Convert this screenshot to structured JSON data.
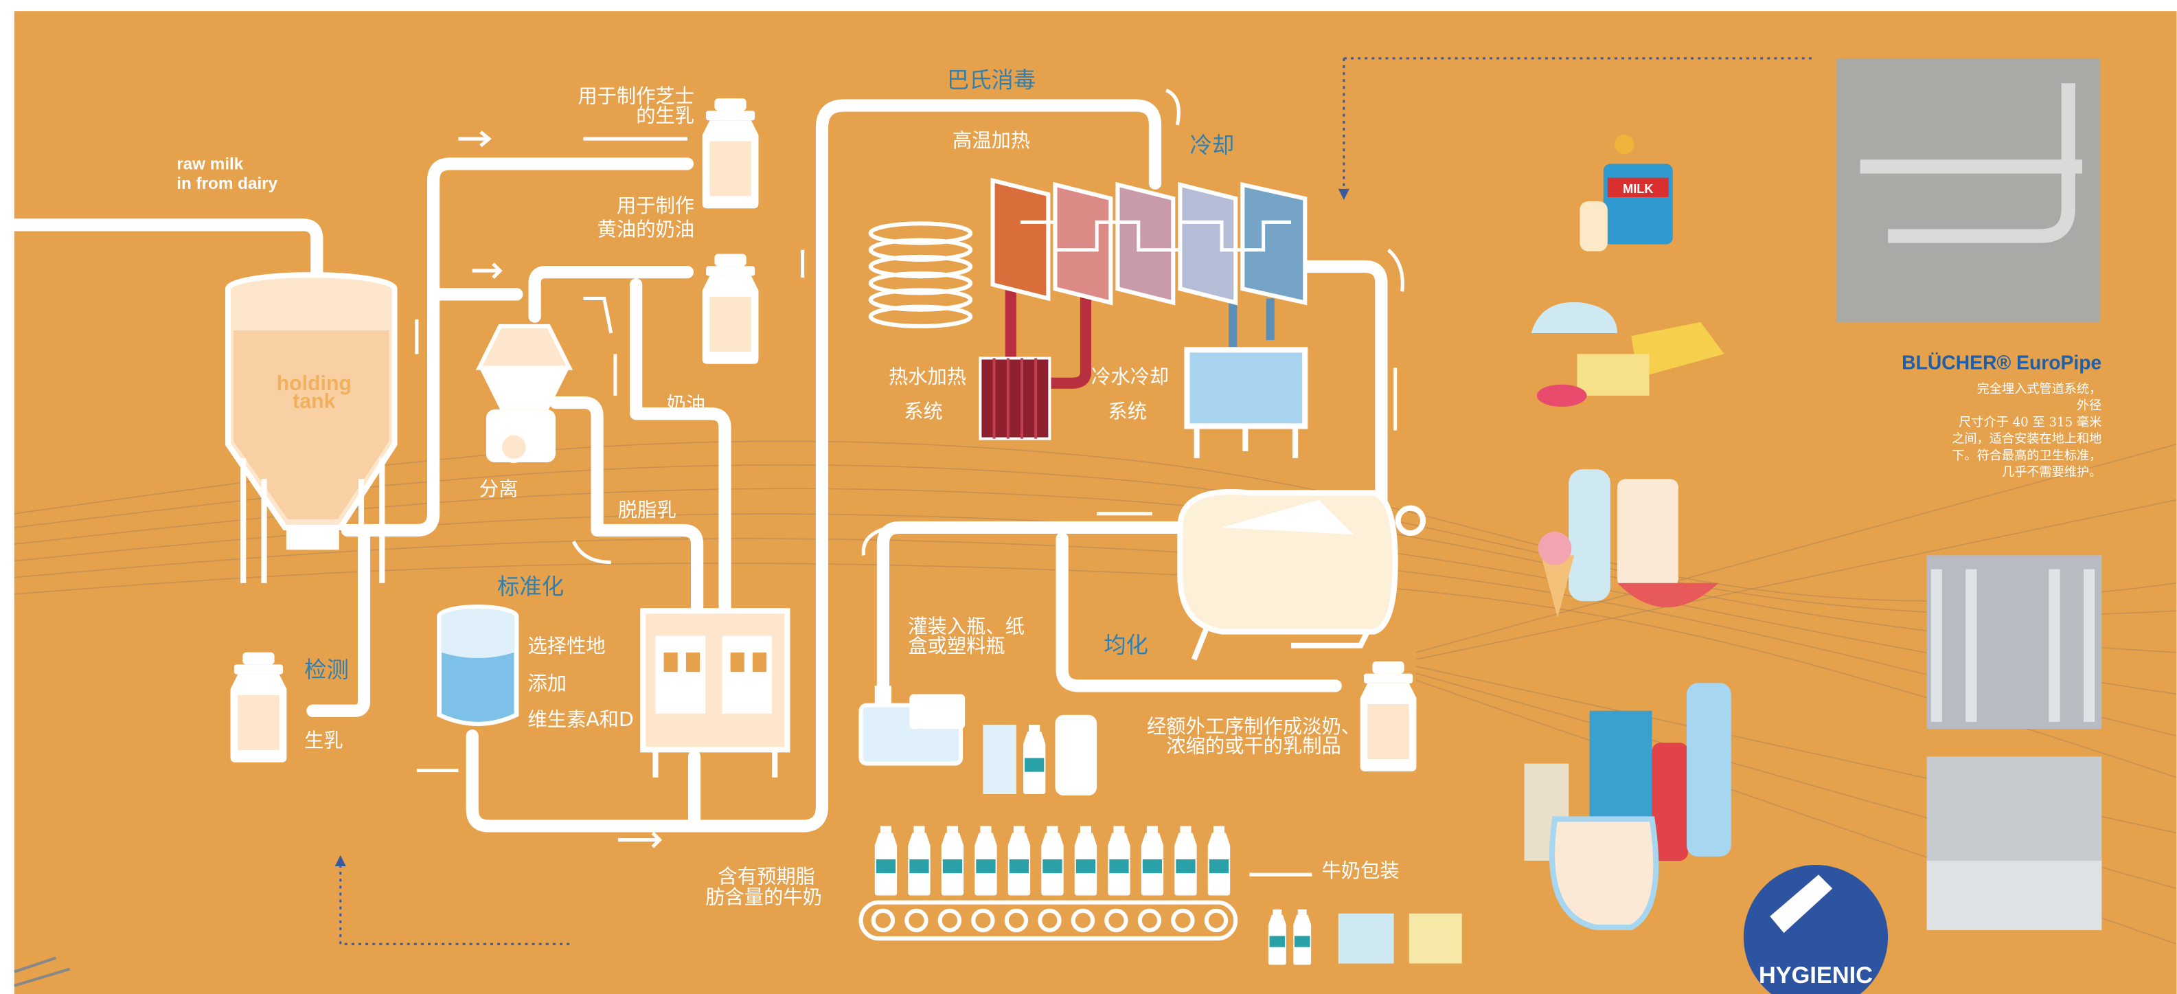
{
  "labels": {
    "raw_milk": [
      "raw milk",
      "in from dairy"
    ],
    "holding_tank": [
      "holding",
      "tank"
    ],
    "testing": "检测",
    "raw_milk_cn": "生乳",
    "cheese_milk": [
      "用于制作芝士",
      "的生乳"
    ],
    "butter_cream": [
      "用于制作",
      "黄油的奶油"
    ],
    "separation": "分离",
    "cream": "奶油",
    "skim_milk": "脱脂乳",
    "standardization": "标准化",
    "vitamins": [
      "选择性地",
      "添加",
      "维生素A和D"
    ],
    "target_fat_milk": [
      "含有预期脂",
      "肪含量的牛奶"
    ],
    "pasteurization": "巴氏消毒",
    "heating": "高温加热",
    "cooling": "冷却",
    "hot_water": [
      "热水加热",
      "系统"
    ],
    "cold_water": [
      "冷水冷却",
      "系统"
    ],
    "homogenization": "均化",
    "filling": [
      "灌装入瓶、纸",
      "盒或塑料瓶"
    ],
    "further_processing": [
      "经额外工序制作成淡奶、",
      "浓缩的或干的乳制品"
    ],
    "packaging": "牛奶包装",
    "milk_can": "MILK",
    "badge": "HYGIENIC"
  },
  "product": {
    "name": "BLÜCHER® EuroPipe",
    "description": [
      "完全埋入式管道系统，",
      "外径",
      "尺寸介于 40 至 315 毫米",
      "之间，适合安装在地上和地",
      "下。符合最高的卫生标准，",
      "几乎不需要维护。"
    ]
  }
}
